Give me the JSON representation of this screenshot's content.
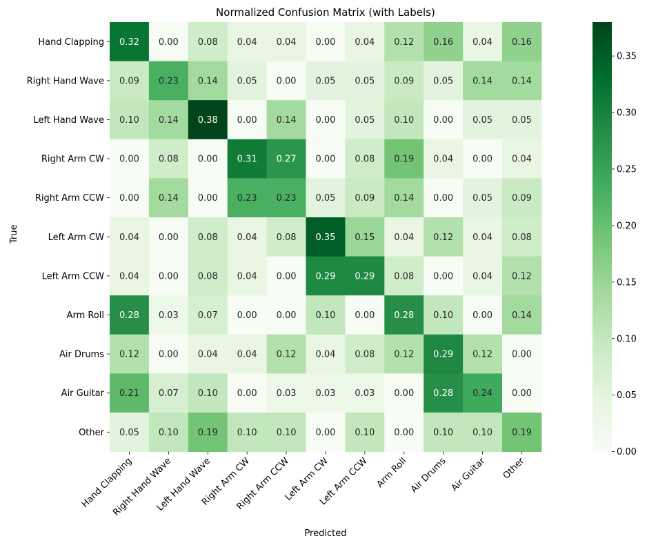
{
  "chart_data": {
    "type": "heatmap",
    "title": "Normalized Confusion Matrix (with Labels)",
    "xlabel": "Predicted",
    "ylabel": "True",
    "x_categories": [
      "Hand Clapping",
      "Right Hand Wave",
      "Left Hand Wave",
      "Right Arm CW",
      "Right Arm CCW",
      "Left Arm CW",
      "Left Arm CCW",
      "Arm Roll",
      "Air Drums",
      "Air Guitar",
      "Other"
    ],
    "y_categories": [
      "Hand Clapping",
      "Right Hand Wave",
      "Left Hand Wave",
      "Right Arm CW",
      "Right Arm CCW",
      "Left Arm CW",
      "Left Arm CCW",
      "Arm Roll",
      "Air Drums",
      "Air Guitar",
      "Other"
    ],
    "values": [
      [
        0.32,
        0.0,
        0.08,
        0.04,
        0.04,
        0.0,
        0.04,
        0.12,
        0.16,
        0.04,
        0.16
      ],
      [
        0.09,
        0.23,
        0.14,
        0.05,
        0.0,
        0.05,
        0.05,
        0.09,
        0.05,
        0.14,
        0.14
      ],
      [
        0.1,
        0.14,
        0.38,
        0.0,
        0.14,
        0.0,
        0.05,
        0.1,
        0.0,
        0.05,
        0.05
      ],
      [
        0.0,
        0.08,
        0.0,
        0.31,
        0.27,
        0.0,
        0.08,
        0.19,
        0.04,
        0.0,
        0.04
      ],
      [
        0.0,
        0.14,
        0.0,
        0.23,
        0.23,
        0.05,
        0.09,
        0.14,
        0.0,
        0.05,
        0.09
      ],
      [
        0.04,
        0.0,
        0.08,
        0.04,
        0.08,
        0.35,
        0.15,
        0.04,
        0.12,
        0.04,
        0.08
      ],
      [
        0.04,
        0.0,
        0.08,
        0.04,
        0.0,
        0.29,
        0.29,
        0.08,
        0.0,
        0.04,
        0.12
      ],
      [
        0.28,
        0.03,
        0.07,
        0.0,
        0.0,
        0.1,
        0.0,
        0.28,
        0.1,
        0.0,
        0.14
      ],
      [
        0.12,
        0.0,
        0.04,
        0.04,
        0.12,
        0.04,
        0.08,
        0.12,
        0.29,
        0.12,
        0.0
      ],
      [
        0.21,
        0.07,
        0.1,
        0.0,
        0.03,
        0.03,
        0.03,
        0.0,
        0.28,
        0.24,
        0.0
      ],
      [
        0.05,
        0.1,
        0.19,
        0.1,
        0.1,
        0.0,
        0.1,
        0.0,
        0.1,
        0.1,
        0.19
      ]
    ],
    "value_format": "0.00",
    "vmin": 0.0,
    "vmax": 0.38,
    "colormap": "Greens",
    "colorbar_ticks": [
      0.0,
      0.05,
      0.1,
      0.15,
      0.2,
      0.25,
      0.3,
      0.35
    ],
    "colorbar_tick_labels": [
      "0.00",
      "0.05",
      "0.10",
      "0.15",
      "0.20",
      "0.25",
      "0.30",
      "0.35"
    ],
    "colormap_stops": [
      "#f7fcf5",
      "#e5f5e0",
      "#c7e9c0",
      "#a1d99b",
      "#74c476",
      "#41ab5d",
      "#238b45",
      "#006d2c",
      "#00441b"
    ]
  }
}
